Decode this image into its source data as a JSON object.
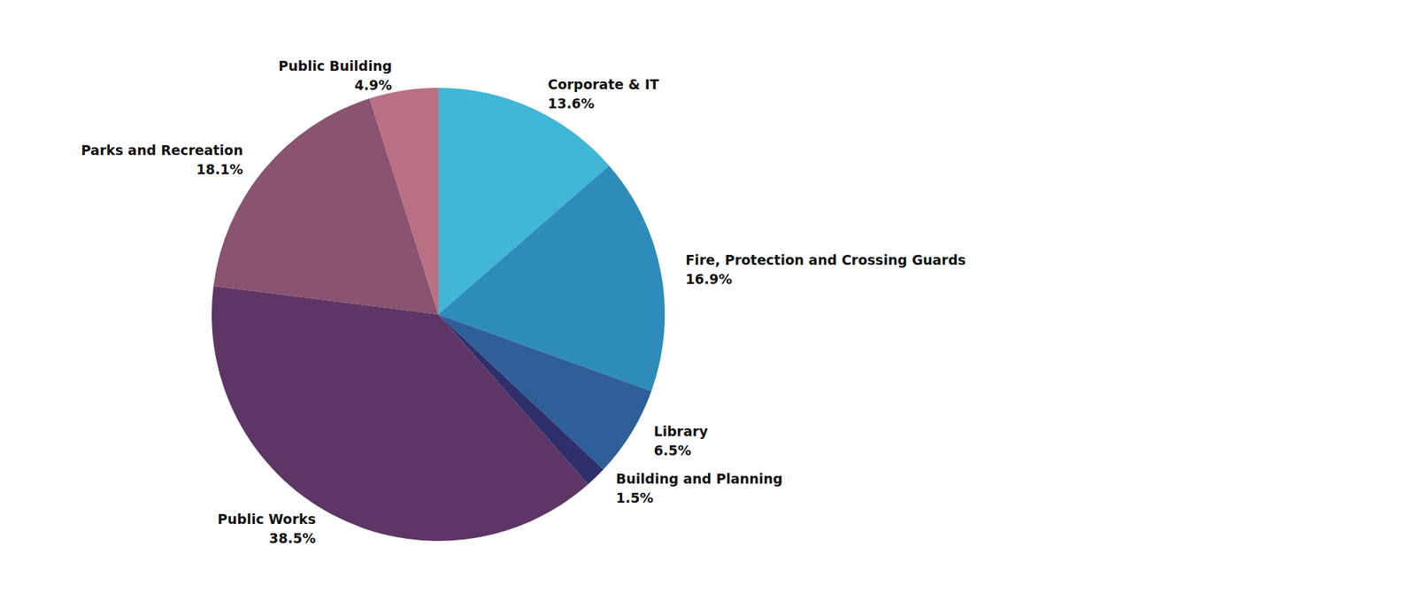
{
  "chart_data": {
    "type": "pie",
    "categories": [
      "Corporate & IT",
      "Fire, Protection and Crossing Guards",
      "Library",
      "Building and Planning",
      "Public Works",
      "Parks and Recreation",
      "Public Building"
    ],
    "values": [
      13.6,
      16.9,
      6.5,
      1.5,
      38.5,
      18.1,
      4.9
    ],
    "value_labels": [
      "13.6%",
      "16.9%",
      "6.5%",
      "1.5%",
      "38.5%",
      "18.1%",
      "4.9%"
    ],
    "colors": [
      "#41b6d6",
      "#2e8cba",
      "#2f5f98",
      "#2e2f6b",
      "#5e3665",
      "#8a536f",
      "#b87082"
    ],
    "data_labels": true
  }
}
